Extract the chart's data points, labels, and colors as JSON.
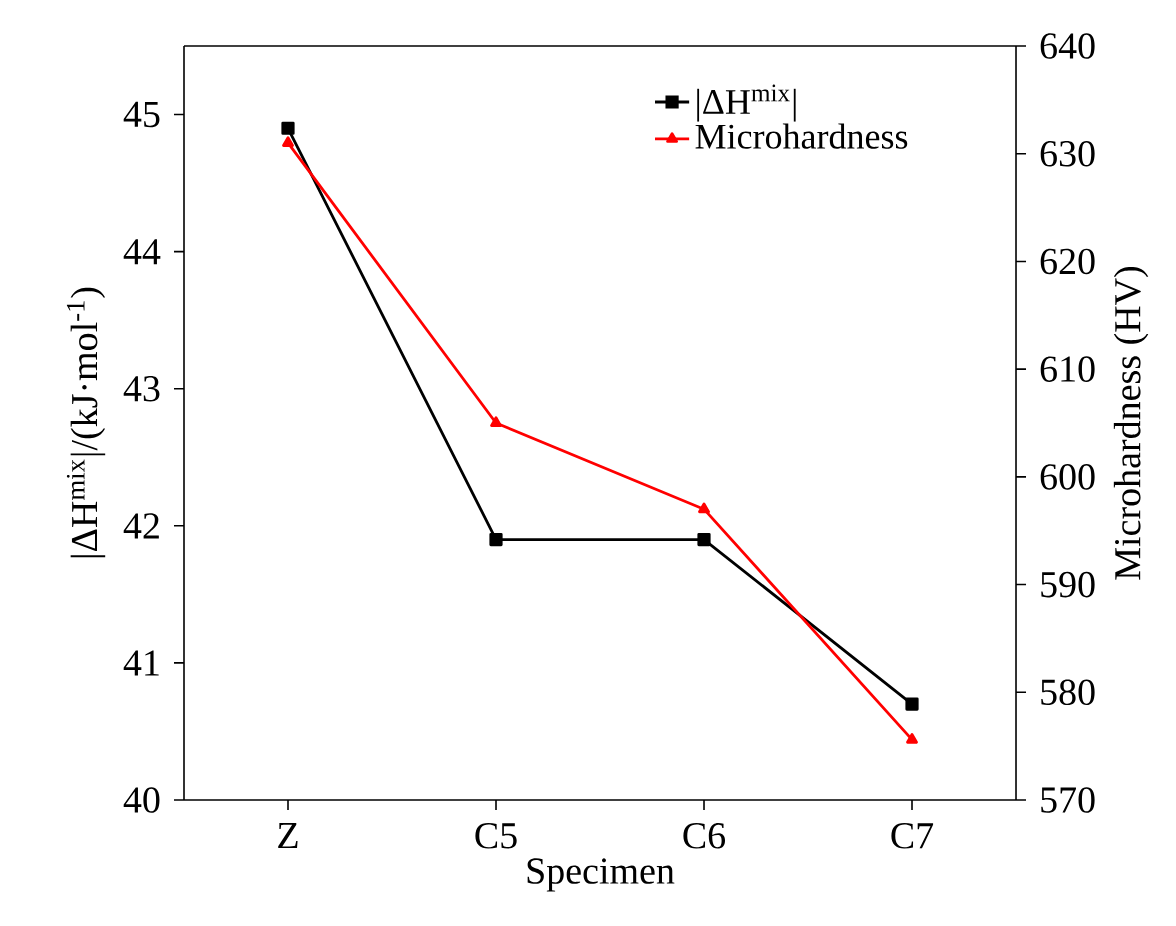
{
  "chart_data": {
    "type": "line",
    "xlabel": "Specimen",
    "ylabel": "|ΔH$^{mix}$|/(kJ·mol$^{-1}$)",
    "y2label": "Microhardness (HV)",
    "categories": [
      "Z",
      "C5",
      "C6",
      "C7"
    ],
    "series": [
      {
        "name": "|ΔH$^{mix}$|",
        "color": "#000000",
        "marker": "square",
        "values": [
          44.9,
          41.9,
          41.9,
          40.7
        ]
      },
      {
        "name": "Microhardness",
        "color": "#ff0000",
        "marker": "triangle",
        "axis": "y2",
        "values": [
          631,
          605,
          597,
          575.6
        ]
      }
    ],
    "ylim": [
      40,
      45.5
    ],
    "yticks": [
      40,
      41,
      42,
      43,
      44,
      45
    ],
    "y2lim": [
      570,
      640
    ],
    "y2ticks": [
      570,
      580,
      590,
      600,
      610,
      620,
      630,
      640
    ],
    "legend": "top right",
    "line_style": "solid",
    "grid": false
  }
}
